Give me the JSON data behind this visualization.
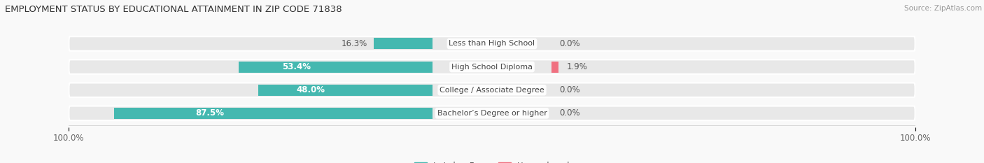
{
  "title": "EMPLOYMENT STATUS BY EDUCATIONAL ATTAINMENT IN ZIP CODE 71838",
  "source": "Source: ZipAtlas.com",
  "categories": [
    "Less than High School",
    "High School Diploma",
    "College / Associate Degree",
    "Bachelor’s Degree or higher"
  ],
  "labor_force": [
    16.3,
    53.4,
    48.0,
    87.5
  ],
  "unemployed": [
    0.0,
    1.9,
    0.0,
    0.0
  ],
  "color_labor": "#45b8b0",
  "color_unemployed": "#f07080",
  "color_bg_bar": "#e8e8e8",
  "bar_height": 0.62,
  "bg_color": "#f9f9f9",
  "title_fontsize": 9.5,
  "label_fontsize": 8.5,
  "tick_fontsize": 8.5,
  "legend_fontsize": 8.5,
  "source_fontsize": 7.5,
  "inside_label_threshold": 30
}
